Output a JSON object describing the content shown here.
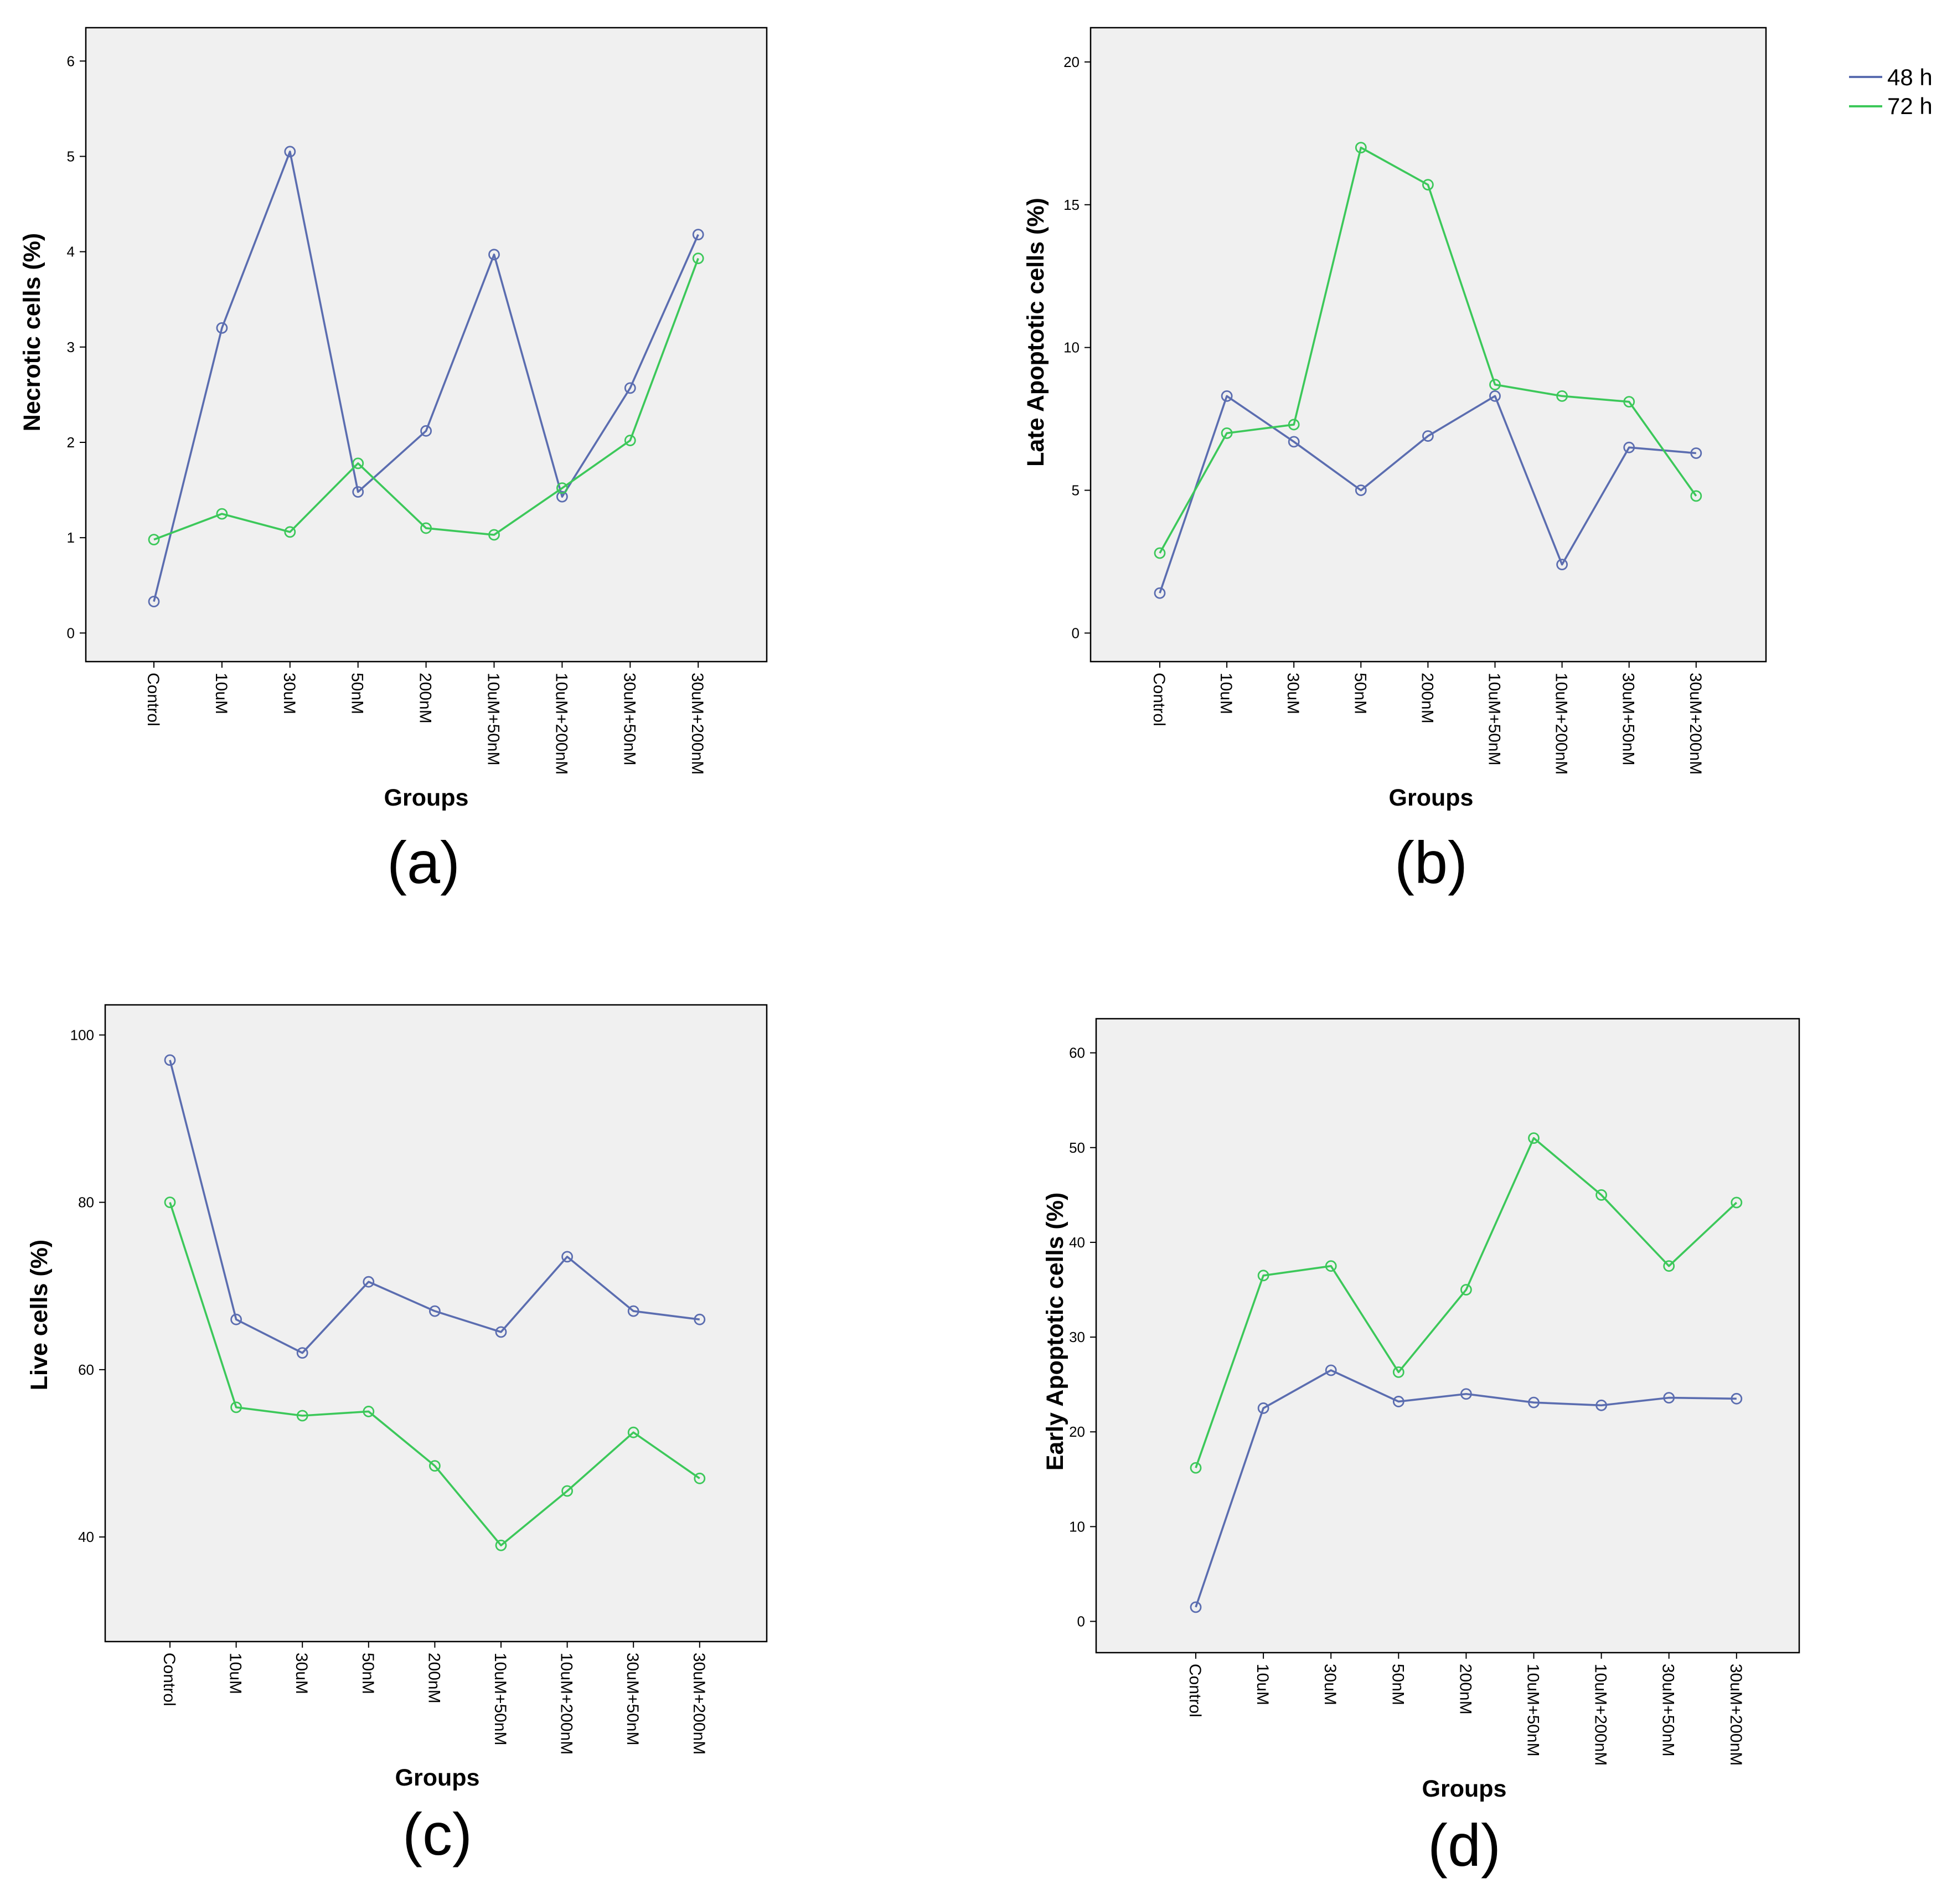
{
  "legend": [
    {
      "name": "48 h",
      "color": "#5B6DB0"
    },
    {
      "name": "72 h",
      "color": "#3CC85A"
    }
  ],
  "chart_data": [
    {
      "type": "line",
      "panel_label": "(a)",
      "ylabel": "Necrotic cells (%)",
      "xlabel": "Groups",
      "categories": [
        "Control",
        "10uM",
        "30uM",
        "50nM",
        "200nM",
        "10uM+50nM",
        "10uM+200nM",
        "30uM+50nM",
        "30uM+200nM"
      ],
      "yticks": [
        0,
        1,
        2,
        3,
        4,
        5,
        6
      ],
      "ylim": [
        -0.3,
        6.35
      ],
      "series": [
        {
          "name": "48 h",
          "values": [
            0.33,
            3.2,
            5.05,
            1.48,
            2.12,
            3.97,
            1.43,
            2.57,
            4.18
          ]
        },
        {
          "name": "72 h",
          "values": [
            0.98,
            1.25,
            1.06,
            1.78,
            1.1,
            1.03,
            1.52,
            2.02,
            3.93
          ]
        }
      ]
    },
    {
      "type": "line",
      "panel_label": "(b)",
      "ylabel": "Late Apoptotic cells (%)",
      "xlabel": "Groups",
      "categories": [
        "Control",
        "10uM",
        "30uM",
        "50nM",
        "200nM",
        "10uM+50nM",
        "10uM+200nM",
        "30uM+50nM",
        "30uM+200nM"
      ],
      "yticks": [
        0,
        5,
        10,
        15,
        20
      ],
      "ylim": [
        -1,
        21.2
      ],
      "series": [
        {
          "name": "48 h",
          "values": [
            1.4,
            8.3,
            6.7,
            5.0,
            6.9,
            8.3,
            2.4,
            6.5,
            6.3
          ]
        },
        {
          "name": "72 h",
          "values": [
            2.8,
            7.0,
            7.3,
            17.0,
            15.7,
            8.7,
            8.3,
            8.1,
            4.8
          ]
        }
      ]
    },
    {
      "type": "line",
      "panel_label": "(c)",
      "ylabel": "Live cells (%)",
      "xlabel": "Groups",
      "categories": [
        "Control",
        "10uM",
        "30uM",
        "50nM",
        "200nM",
        "10uM+50nM",
        "10uM+200nM",
        "30uM+50nM",
        "30uM+200nM"
      ],
      "yticks": [
        40,
        60,
        80,
        100
      ],
      "ylim": [
        27.5,
        103.6
      ],
      "series": [
        {
          "name": "48 h",
          "values": [
            97.0,
            66.0,
            62.0,
            70.5,
            67.0,
            64.5,
            73.5,
            67.0,
            66.0
          ]
        },
        {
          "name": "72 h",
          "values": [
            80.0,
            55.5,
            54.5,
            55.0,
            48.5,
            39.0,
            45.5,
            52.5,
            47.0
          ]
        }
      ]
    },
    {
      "type": "line",
      "panel_label": "(d)",
      "ylabel": "Early Apoptotic cells (%)",
      "xlabel": "Groups",
      "categories": [
        "Control",
        "10uM",
        "30uM",
        "50nM",
        "200nM",
        "10uM+50nM",
        "10uM+200nM",
        "30uM+50nM",
        "30uM+200nM"
      ],
      "yticks": [
        0,
        10,
        20,
        30,
        40,
        50,
        60
      ],
      "ylim": [
        -3.3,
        63.6
      ],
      "series": [
        {
          "name": "48 h",
          "values": [
            1.5,
            22.5,
            26.5,
            23.2,
            24.0,
            23.1,
            22.8,
            23.6,
            23.5
          ]
        },
        {
          "name": "72 h",
          "values": [
            16.2,
            36.5,
            37.5,
            26.3,
            35.0,
            51.0,
            45.0,
            37.5,
            44.2
          ]
        }
      ]
    }
  ]
}
